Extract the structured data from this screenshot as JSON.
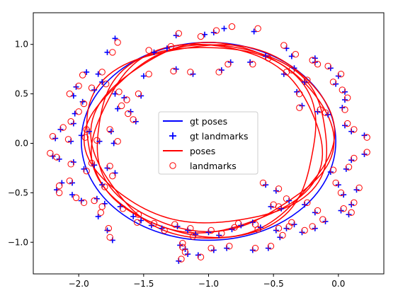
{
  "chart_data": {
    "type": "scatter",
    "title": "",
    "xlabel": "",
    "ylabel": "",
    "xlim": [
      -2.35,
      0.35
    ],
    "ylim": [
      -1.32,
      1.32
    ],
    "x_ticks": [
      -2.0,
      -1.5,
      -1.0,
      -0.5,
      0.0
    ],
    "x_tick_labels": [
      "−2.0",
      "−1.5",
      "−1.0",
      "−0.5",
      "0.0"
    ],
    "y_ticks": [
      -1.0,
      -0.5,
      0.0,
      0.5,
      1.0
    ],
    "y_tick_labels": [
      "−1.0",
      "−0.5",
      "0.0",
      "0.5",
      "1.0"
    ],
    "grid": false,
    "legend_position": "center",
    "colors": {
      "gt": "#0000ff",
      "est": "#ff0000"
    },
    "gt_pose_ellipse": {
      "center": [
        -1.0,
        0.02
      ],
      "radius_x": 0.98,
      "radius_y": 1.0
    },
    "est_pose_loops": [
      {
        "center": [
          -1.0,
          0.05
        ],
        "radius_x": 0.95,
        "radius_y": 0.97
      },
      {
        "center": [
          -0.98,
          0.06
        ],
        "radius_x": 0.91,
        "radius_y": 0.93
      },
      {
        "center": [
          -1.02,
          0.04
        ],
        "radius_x": 0.88,
        "radius_y": 0.95
      },
      {
        "center": [
          -0.99,
          0.08
        ],
        "radius_x": 0.93,
        "radius_y": 0.9
      },
      {
        "center": [
          -1.01,
          0.03
        ],
        "radius_x": 0.86,
        "radius_y": 0.99
      }
    ],
    "series": [
      {
        "name": "gt poses",
        "type": "line"
      },
      {
        "name": "gt landmarks",
        "type": "scatter",
        "marker": "+",
        "points": [
          [
            -0.96,
            1.12
          ],
          [
            -0.88,
            1.16
          ],
          [
            -0.65,
            1.13
          ],
          [
            -1.25,
            1.09
          ],
          [
            -1.03,
            1.1
          ],
          [
            -1.72,
            1.06
          ],
          [
            -1.78,
            0.92
          ],
          [
            -1.42,
            0.92
          ],
          [
            -1.32,
            0.96
          ],
          [
            -0.56,
            0.88
          ],
          [
            -0.4,
            0.96
          ],
          [
            -0.36,
            0.88
          ],
          [
            -0.18,
            0.86
          ],
          [
            -0.83,
            0.82
          ],
          [
            -0.9,
            0.74
          ],
          [
            -0.68,
            0.82
          ],
          [
            -1.12,
            0.7
          ],
          [
            -1.25,
            0.75
          ],
          [
            -1.5,
            0.68
          ],
          [
            -1.94,
            0.72
          ],
          [
            -1.85,
            0.7
          ],
          [
            -1.82,
            0.62
          ],
          [
            -1.88,
            0.54
          ],
          [
            -2.02,
            0.57
          ],
          [
            -2.04,
            0.48
          ],
          [
            -1.97,
            0.42
          ],
          [
            -1.72,
            0.5
          ],
          [
            -1.65,
            0.46
          ],
          [
            -1.52,
            0.48
          ],
          [
            -1.7,
            0.35
          ],
          [
            -1.6,
            0.32
          ],
          [
            -1.56,
            0.22
          ],
          [
            -1.75,
            0.12
          ],
          [
            -1.92,
            0.12
          ],
          [
            -2.03,
            0.3
          ],
          [
            -2.04,
            0.2
          ],
          [
            -2.14,
            0.14
          ],
          [
            -2.18,
            0.05
          ],
          [
            -2.06,
            0.02
          ],
          [
            -1.98,
            0.08
          ],
          [
            -1.84,
            0.02
          ],
          [
            -1.73,
            0.0
          ],
          [
            -2.15,
            -0.16
          ],
          [
            -2.2,
            -0.13
          ],
          [
            -2.04,
            -0.19
          ],
          [
            -1.96,
            -0.26
          ],
          [
            -1.88,
            -0.22
          ],
          [
            -1.78,
            -0.25
          ],
          [
            -1.72,
            -0.3
          ],
          [
            -1.82,
            -0.42
          ],
          [
            -2.05,
            -0.4
          ],
          [
            -2.13,
            -0.4
          ],
          [
            -2.17,
            -0.47
          ],
          [
            -2.05,
            -0.52
          ],
          [
            -1.98,
            -0.58
          ],
          [
            -1.86,
            -0.56
          ],
          [
            -1.8,
            -0.61
          ],
          [
            -1.68,
            -0.64
          ],
          [
            -1.58,
            -0.74
          ],
          [
            -1.85,
            -0.74
          ],
          [
            -1.78,
            -0.88
          ],
          [
            -1.74,
            -0.98
          ],
          [
            -1.52,
            -0.78
          ],
          [
            -1.44,
            -0.83
          ],
          [
            -1.36,
            -0.86
          ],
          [
            -1.24,
            -0.84
          ],
          [
            -1.16,
            -0.88
          ],
          [
            -1.1,
            -0.92
          ],
          [
            -1.0,
            -0.9
          ],
          [
            -0.92,
            -0.93
          ],
          [
            -0.82,
            -0.87
          ],
          [
            -0.75,
            -0.83
          ],
          [
            -0.66,
            -0.8
          ],
          [
            -0.6,
            -0.85
          ],
          [
            -0.48,
            -0.88
          ],
          [
            -0.4,
            -0.86
          ],
          [
            -0.34,
            -0.82
          ],
          [
            -1.22,
            -1.03
          ],
          [
            -1.18,
            -1.07
          ],
          [
            -1.16,
            -1.12
          ],
          [
            -1.23,
            -1.19
          ],
          [
            -1.08,
            -1.13
          ],
          [
            -0.96,
            -1.08
          ],
          [
            -0.86,
            -1.06
          ],
          [
            -0.66,
            -1.08
          ],
          [
            -0.54,
            -1.06
          ],
          [
            -0.45,
            -0.95
          ],
          [
            -0.28,
            -0.9
          ],
          [
            -0.18,
            -0.86
          ],
          [
            -0.1,
            -0.79
          ],
          [
            -0.18,
            -0.7
          ],
          [
            -0.26,
            -0.62
          ],
          [
            -0.38,
            -0.58
          ],
          [
            -0.44,
            -0.66
          ],
          [
            -0.52,
            -0.64
          ],
          [
            -0.48,
            -0.48
          ],
          [
            -0.56,
            -0.42
          ],
          [
            0.02,
            -0.68
          ],
          [
            0.08,
            -0.72
          ],
          [
            0.1,
            -0.62
          ],
          [
            0.04,
            -0.52
          ],
          [
            0.14,
            -0.47
          ],
          [
            0.0,
            -0.42
          ],
          [
            -0.06,
            -0.29
          ],
          [
            0.06,
            -0.26
          ],
          [
            0.1,
            -0.17
          ],
          [
            0.2,
            -0.11
          ],
          [
            0.2,
            0.08
          ],
          [
            0.1,
            0.12
          ],
          [
            0.05,
            0.18
          ],
          [
            -0.08,
            0.29
          ],
          [
            -0.16,
            0.32
          ],
          [
            -0.28,
            0.38
          ],
          [
            0.03,
            0.36
          ],
          [
            0.05,
            0.44
          ],
          [
            0.05,
            0.52
          ],
          [
            -0.02,
            0.6
          ],
          [
            0.0,
            0.68
          ],
          [
            -0.06,
            0.76
          ],
          [
            -0.18,
            0.82
          ],
          [
            -0.34,
            0.76
          ],
          [
            -0.42,
            0.7
          ],
          [
            -0.26,
            0.62
          ],
          [
            -0.32,
            0.52
          ]
        ]
      },
      {
        "name": "poses",
        "type": "line"
      },
      {
        "name": "landmarks",
        "type": "scatter",
        "marker": "o",
        "points": [
          [
            -0.94,
            1.14
          ],
          [
            -0.82,
            1.18
          ],
          [
            -0.62,
            1.16
          ],
          [
            -1.23,
            1.11
          ],
          [
            -1.06,
            1.08
          ],
          [
            -1.7,
            1.02
          ],
          [
            -1.74,
            0.92
          ],
          [
            -1.46,
            0.94
          ],
          [
            -1.29,
            0.98
          ],
          [
            -0.54,
            0.86
          ],
          [
            -0.42,
            0.99
          ],
          [
            -0.33,
            0.9
          ],
          [
            -0.2,
            0.84
          ],
          [
            -0.85,
            0.8
          ],
          [
            -0.92,
            0.72
          ],
          [
            -0.66,
            0.8
          ],
          [
            -1.14,
            0.72
          ],
          [
            -1.27,
            0.73
          ],
          [
            -1.46,
            0.7
          ],
          [
            -1.97,
            0.69
          ],
          [
            -1.82,
            0.72
          ],
          [
            -1.79,
            0.6
          ],
          [
            -1.9,
            0.56
          ],
          [
            -2.0,
            0.58
          ],
          [
            -2.07,
            0.5
          ],
          [
            -1.96,
            0.4
          ],
          [
            -1.69,
            0.52
          ],
          [
            -1.63,
            0.44
          ],
          [
            -1.54,
            0.5
          ],
          [
            -1.67,
            0.38
          ],
          [
            -1.62,
            0.3
          ],
          [
            -1.58,
            0.24
          ],
          [
            -1.76,
            0.14
          ],
          [
            -1.94,
            0.14
          ],
          [
            -2.0,
            0.32
          ],
          [
            -2.06,
            0.22
          ],
          [
            -2.12,
            0.16
          ],
          [
            -2.2,
            0.07
          ],
          [
            -2.08,
            0.04
          ],
          [
            -1.95,
            0.06
          ],
          [
            -1.86,
            0.03
          ],
          [
            -1.7,
            0.02
          ],
          [
            -2.17,
            -0.14
          ],
          [
            -2.22,
            -0.1
          ],
          [
            -2.06,
            -0.21
          ],
          [
            -1.94,
            -0.28
          ],
          [
            -1.9,
            -0.2
          ],
          [
            -1.76,
            -0.23
          ],
          [
            -1.74,
            -0.33
          ],
          [
            -1.8,
            -0.44
          ],
          [
            -2.07,
            -0.38
          ],
          [
            -2.15,
            -0.43
          ],
          [
            -2.15,
            -0.5
          ],
          [
            -2.02,
            -0.55
          ],
          [
            -1.96,
            -0.6
          ],
          [
            -1.88,
            -0.58
          ],
          [
            -1.82,
            -0.64
          ],
          [
            -1.66,
            -0.66
          ],
          [
            -1.54,
            -0.72
          ],
          [
            -1.83,
            -0.7
          ],
          [
            -1.77,
            -0.86
          ],
          [
            -1.76,
            -0.95
          ],
          [
            -1.55,
            -0.8
          ],
          [
            -1.42,
            -0.81
          ],
          [
            -1.34,
            -0.88
          ],
          [
            -1.26,
            -0.82
          ],
          [
            -1.14,
            -0.86
          ],
          [
            -1.12,
            -0.94
          ],
          [
            -0.98,
            -0.88
          ],
          [
            -0.9,
            -0.91
          ],
          [
            -0.8,
            -0.85
          ],
          [
            -0.77,
            -0.81
          ],
          [
            -0.64,
            -0.82
          ],
          [
            -0.62,
            -0.87
          ],
          [
            -0.46,
            -0.86
          ],
          [
            -0.38,
            -0.84
          ],
          [
            -0.36,
            -0.8
          ],
          [
            -1.2,
            -1.01
          ],
          [
            -1.2,
            -1.05
          ],
          [
            -1.18,
            -1.1
          ],
          [
            -1.21,
            -1.17
          ],
          [
            -1.06,
            -1.15
          ],
          [
            -0.98,
            -1.06
          ],
          [
            -0.84,
            -1.04
          ],
          [
            -0.64,
            -1.06
          ],
          [
            -0.52,
            -1.04
          ],
          [
            -0.43,
            -0.93
          ],
          [
            -0.26,
            -0.88
          ],
          [
            -0.2,
            -0.84
          ],
          [
            -0.12,
            -0.77
          ],
          [
            -0.16,
            -0.68
          ],
          [
            -0.24,
            -0.6
          ],
          [
            -0.4,
            -0.56
          ],
          [
            -0.46,
            -0.64
          ],
          [
            -0.5,
            -0.62
          ],
          [
            -0.46,
            -0.46
          ],
          [
            -0.58,
            -0.4
          ],
          [
            0.04,
            -0.66
          ],
          [
            0.1,
            -0.7
          ],
          [
            0.12,
            -0.6
          ],
          [
            0.02,
            -0.5
          ],
          [
            0.16,
            -0.45
          ],
          [
            -0.02,
            -0.4
          ],
          [
            -0.04,
            -0.27
          ],
          [
            0.08,
            -0.24
          ],
          [
            0.12,
            -0.15
          ],
          [
            0.22,
            -0.09
          ],
          [
            0.22,
            0.06
          ],
          [
            0.12,
            0.14
          ],
          [
            0.07,
            0.2
          ],
          [
            -0.1,
            0.31
          ],
          [
            -0.14,
            0.34
          ],
          [
            -0.3,
            0.36
          ],
          [
            0.05,
            0.34
          ],
          [
            0.07,
            0.46
          ],
          [
            0.03,
            0.54
          ],
          [
            -0.04,
            0.62
          ],
          [
            0.02,
            0.7
          ],
          [
            -0.08,
            0.78
          ],
          [
            -0.16,
            0.8
          ],
          [
            -0.36,
            0.74
          ],
          [
            -0.4,
            0.72
          ],
          [
            -0.24,
            0.64
          ],
          [
            -0.3,
            0.5
          ]
        ]
      }
    ]
  }
}
